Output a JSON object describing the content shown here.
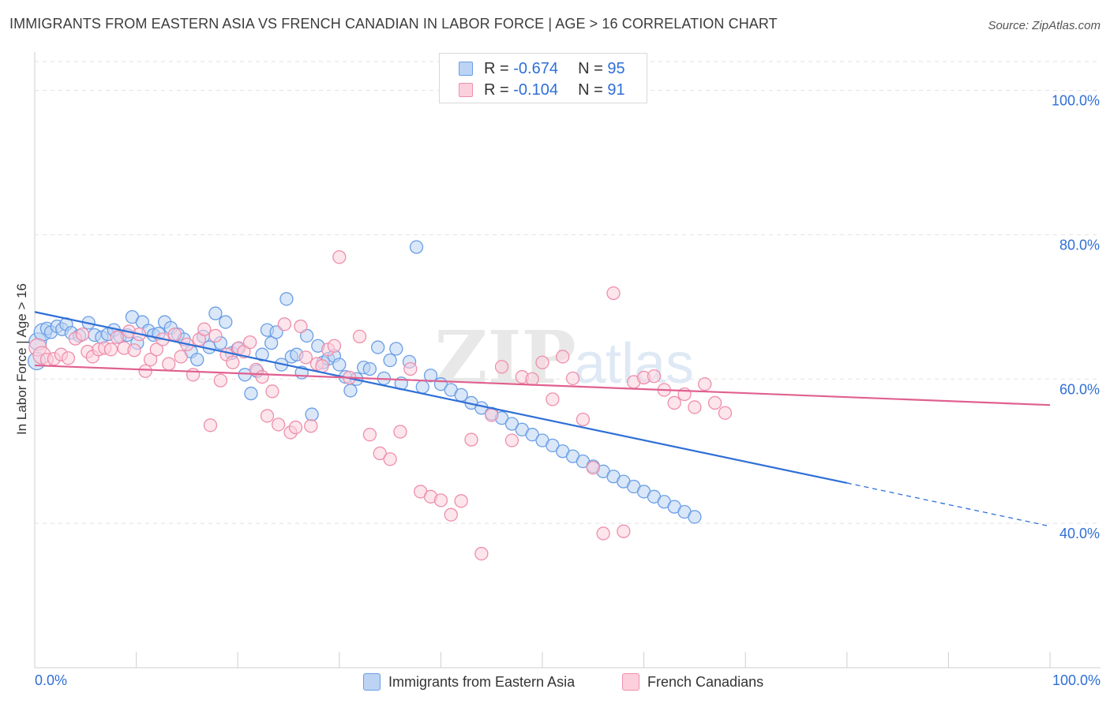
{
  "header": {
    "title": "IMMIGRANTS FROM EASTERN ASIA VS FRENCH CANADIAN IN LABOR FORCE | AGE > 16 CORRELATION CHART",
    "source": "Source: ZipAtlas.com"
  },
  "watermark": {
    "zip": "ZIP",
    "atlas": "atlas"
  },
  "legend_top": {
    "rows": [
      {
        "r_label": "R = ",
        "r_value": "-0.674",
        "n_label": "N = ",
        "n_value": "95",
        "color": "#6a9ee6",
        "fill": "#bcd3f3"
      },
      {
        "r_label": "R = ",
        "r_value": "-0.104",
        "n_label": "N = ",
        "n_value": "91",
        "color": "#ee8fab",
        "fill": "#fbd0dc"
      }
    ]
  },
  "legend_bottom": {
    "items": [
      {
        "label": "Immigrants from Eastern Asia",
        "color": "#6a9ee6",
        "fill": "#bcd3f3"
      },
      {
        "label": "French Canadians",
        "color": "#ee8fab",
        "fill": "#fbd0dc"
      }
    ]
  },
  "chart_data": {
    "type": "scatter",
    "title": "IMMIGRANTS FROM EASTERN ASIA VS FRENCH CANADIAN IN LABOR FORCE | AGE > 16 CORRELATION CHART",
    "xlabel": "",
    "ylabel": "In Labor Force | Age > 16",
    "xlim": [
      0,
      100
    ],
    "ylim": [
      20,
      104
    ],
    "x_tick_labels": [
      "0.0%",
      "100.0%"
    ],
    "y_ticks": [
      40,
      60,
      80,
      100
    ],
    "y_tick_labels": [
      "40.0%",
      "60.0%",
      "80.0%",
      "100.0%"
    ],
    "grid": true,
    "series": [
      {
        "name": "Immigrants from Eastern Asia",
        "color": "#2f6fd6",
        "point_stroke": "#6a9ee6",
        "point_fill": "#bcd3f3",
        "trend": {
          "x0": 0,
          "y0": 69.3,
          "x1": 80,
          "y1": 45.6,
          "dash_x1": 100,
          "dash_y1": 39.6
        },
        "points": [
          [
            0.2,
            62.5
          ],
          [
            0.3,
            65.2
          ],
          [
            0.8,
            66.5
          ],
          [
            1.2,
            67.0
          ],
          [
            1.6,
            66.5
          ],
          [
            2.2,
            67.3
          ],
          [
            2.7,
            66.9
          ],
          [
            3.1,
            67.6
          ],
          [
            3.6,
            66.4
          ],
          [
            4.4,
            66.0
          ],
          [
            5.3,
            67.8
          ],
          [
            5.9,
            66.1
          ],
          [
            6.6,
            65.8
          ],
          [
            7.2,
            66.2
          ],
          [
            7.8,
            66.8
          ],
          [
            8.4,
            65.9
          ],
          [
            9.1,
            66.1
          ],
          [
            9.6,
            68.6
          ],
          [
            10.1,
            65.0
          ],
          [
            10.6,
            67.9
          ],
          [
            11.2,
            66.7
          ],
          [
            11.7,
            66.1
          ],
          [
            12.2,
            66.3
          ],
          [
            12.8,
            67.9
          ],
          [
            13.4,
            67.1
          ],
          [
            14.1,
            66.2
          ],
          [
            14.7,
            65.5
          ],
          [
            15.4,
            63.8
          ],
          [
            16.0,
            62.7
          ],
          [
            16.6,
            65.9
          ],
          [
            17.2,
            64.4
          ],
          [
            17.8,
            69.1
          ],
          [
            18.3,
            65.0
          ],
          [
            18.8,
            67.9
          ],
          [
            19.4,
            63.6
          ],
          [
            20.0,
            64.2
          ],
          [
            20.7,
            60.6
          ],
          [
            21.3,
            58.0
          ],
          [
            21.9,
            61.1
          ],
          [
            22.4,
            63.4
          ],
          [
            22.9,
            66.8
          ],
          [
            23.3,
            65.0
          ],
          [
            23.8,
            66.5
          ],
          [
            24.3,
            62.0
          ],
          [
            24.8,
            71.1
          ],
          [
            25.3,
            63.1
          ],
          [
            25.8,
            63.4
          ],
          [
            26.3,
            60.9
          ],
          [
            26.8,
            66.0
          ],
          [
            27.3,
            55.1
          ],
          [
            27.9,
            64.6
          ],
          [
            28.4,
            62.3
          ],
          [
            28.9,
            62.8
          ],
          [
            29.5,
            63.2
          ],
          [
            30.0,
            62.0
          ],
          [
            30.6,
            60.3
          ],
          [
            31.1,
            58.4
          ],
          [
            31.7,
            60.0
          ],
          [
            32.4,
            61.6
          ],
          [
            33.0,
            61.4
          ],
          [
            33.8,
            64.4
          ],
          [
            34.4,
            60.1
          ],
          [
            35.0,
            62.6
          ],
          [
            35.6,
            64.2
          ],
          [
            36.1,
            59.4
          ],
          [
            36.9,
            62.4
          ],
          [
            37.6,
            78.3
          ],
          [
            38.2,
            58.9
          ],
          [
            39.0,
            60.5
          ],
          [
            40.0,
            59.3
          ],
          [
            41.0,
            58.5
          ],
          [
            42.0,
            57.8
          ],
          [
            43.0,
            56.7
          ],
          [
            44.0,
            56.0
          ],
          [
            45.0,
            55.2
          ],
          [
            46.0,
            54.6
          ],
          [
            47.0,
            53.8
          ],
          [
            48.0,
            53.0
          ],
          [
            49.0,
            52.3
          ],
          [
            50.0,
            51.5
          ],
          [
            51.0,
            50.8
          ],
          [
            52.0,
            50.0
          ],
          [
            53.0,
            49.3
          ],
          [
            54.0,
            48.6
          ],
          [
            55.0,
            47.9
          ],
          [
            56.0,
            47.2
          ],
          [
            57.0,
            46.5
          ],
          [
            58.0,
            45.8
          ],
          [
            59.0,
            45.1
          ],
          [
            60.0,
            44.4
          ],
          [
            61.0,
            43.7
          ],
          [
            62.0,
            43.0
          ],
          [
            63.0,
            42.3
          ],
          [
            64.0,
            41.6
          ],
          [
            65.0,
            40.9
          ]
        ]
      },
      {
        "name": "French Canadians",
        "color": "#e0608f",
        "point_stroke": "#ee8fab",
        "point_fill": "#fbd0dc",
        "trend": {
          "x0": 0,
          "y0": 61.9,
          "x1": 100,
          "y1": 56.4
        },
        "points": [
          [
            0.3,
            64.4
          ],
          [
            0.7,
            63.3
          ],
          [
            1.2,
            62.7
          ],
          [
            1.9,
            62.8
          ],
          [
            2.6,
            63.4
          ],
          [
            3.3,
            62.9
          ],
          [
            4.0,
            65.6
          ],
          [
            4.7,
            66.2
          ],
          [
            5.2,
            63.8
          ],
          [
            5.7,
            63.1
          ],
          [
            6.3,
            64.1
          ],
          [
            6.9,
            64.3
          ],
          [
            7.5,
            64.1
          ],
          [
            8.1,
            65.8
          ],
          [
            8.8,
            64.3
          ],
          [
            9.3,
            66.6
          ],
          [
            9.8,
            64.0
          ],
          [
            10.3,
            66.2
          ],
          [
            10.9,
            61.1
          ],
          [
            11.4,
            62.7
          ],
          [
            12.0,
            64.1
          ],
          [
            12.6,
            65.5
          ],
          [
            13.2,
            62.1
          ],
          [
            13.8,
            66.2
          ],
          [
            14.4,
            63.1
          ],
          [
            15.0,
            64.8
          ],
          [
            15.6,
            60.6
          ],
          [
            16.2,
            65.5
          ],
          [
            16.7,
            66.9
          ],
          [
            17.3,
            53.6
          ],
          [
            17.8,
            66.0
          ],
          [
            18.3,
            59.8
          ],
          [
            18.9,
            63.4
          ],
          [
            19.5,
            62.3
          ],
          [
            20.1,
            64.3
          ],
          [
            20.6,
            63.8
          ],
          [
            21.2,
            65.1
          ],
          [
            21.8,
            61.3
          ],
          [
            22.4,
            60.3
          ],
          [
            22.9,
            54.9
          ],
          [
            23.4,
            58.3
          ],
          [
            24.0,
            53.7
          ],
          [
            24.6,
            67.6
          ],
          [
            25.2,
            52.6
          ],
          [
            25.7,
            53.3
          ],
          [
            26.2,
            67.3
          ],
          [
            26.7,
            63.0
          ],
          [
            27.2,
            53.5
          ],
          [
            27.8,
            62.1
          ],
          [
            28.3,
            61.8
          ],
          [
            28.9,
            64.1
          ],
          [
            29.5,
            64.6
          ],
          [
            30.0,
            76.9
          ],
          [
            31.0,
            60.2
          ],
          [
            32.0,
            65.9
          ],
          [
            33.0,
            52.3
          ],
          [
            34.0,
            49.7
          ],
          [
            35.0,
            48.9
          ],
          [
            36.0,
            52.7
          ],
          [
            37.0,
            61.4
          ],
          [
            38.0,
            44.4
          ],
          [
            39.0,
            43.7
          ],
          [
            40.0,
            43.2
          ],
          [
            41.0,
            41.2
          ],
          [
            42.0,
            43.1
          ],
          [
            43.0,
            51.6
          ],
          [
            44.0,
            35.8
          ],
          [
            45.0,
            55.0
          ],
          [
            46.0,
            61.7
          ],
          [
            47.0,
            51.5
          ],
          [
            48.0,
            60.3
          ],
          [
            49.0,
            60.0
          ],
          [
            50.0,
            62.3
          ],
          [
            51.0,
            57.2
          ],
          [
            52.0,
            63.1
          ],
          [
            53.0,
            60.1
          ],
          [
            54.0,
            54.4
          ],
          [
            55.0,
            47.7
          ],
          [
            56.0,
            38.6
          ],
          [
            57.0,
            71.9
          ],
          [
            58.0,
            38.9
          ],
          [
            59.0,
            59.6
          ],
          [
            60.0,
            60.2
          ],
          [
            61.0,
            60.4
          ],
          [
            62.0,
            58.5
          ],
          [
            63.0,
            56.7
          ],
          [
            64.0,
            57.9
          ],
          [
            65.0,
            56.1
          ],
          [
            66.0,
            59.3
          ],
          [
            67.0,
            56.7
          ],
          [
            68.0,
            55.3
          ]
        ]
      }
    ]
  }
}
